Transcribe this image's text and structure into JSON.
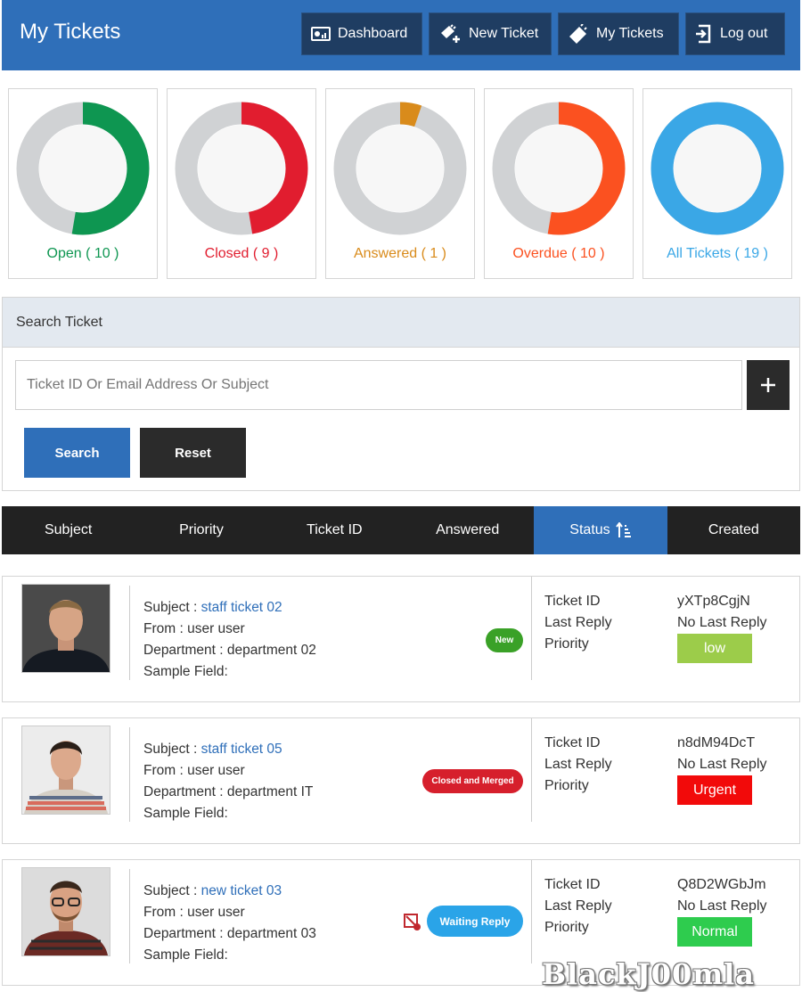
{
  "header": {
    "title": "My Tickets",
    "nav": [
      {
        "label": "Dashboard",
        "icon": "dashboard-icon"
      },
      {
        "label": "New Ticket",
        "icon": "new-ticket-icon"
      },
      {
        "label": "My Tickets",
        "icon": "ticket-icon"
      },
      {
        "label": "Log out",
        "icon": "logout-icon"
      }
    ]
  },
  "stats": [
    {
      "label": "Open ( 10 )",
      "value": 10,
      "total": 19,
      "color": "#0e9651"
    },
    {
      "label": "Closed ( 9 )",
      "value": 9,
      "total": 19,
      "color": "#e11d2f"
    },
    {
      "label": "Answered ( 1 )",
      "value": 1,
      "total": 19,
      "color": "#d98b1b"
    },
    {
      "label": "Overdue ( 10 )",
      "value": 10,
      "total": 19,
      "color": "#fb5120"
    },
    {
      "label": "All Tickets ( 19 )",
      "value": 19,
      "total": 19,
      "color": "#3aa7e6"
    }
  ],
  "search": {
    "heading": "Search Ticket",
    "placeholder": "Ticket ID Or Email Address Or Subject",
    "search_label": "Search",
    "reset_label": "Reset"
  },
  "sort": {
    "columns": [
      "Subject",
      "Priority",
      "Ticket ID",
      "Answered",
      "Status",
      "Created"
    ],
    "active": "Status"
  },
  "labels": {
    "subject": "Subject : ",
    "from": "From : ",
    "department": "Department : ",
    "sample_field": "Sample Field:",
    "ticket_id": "Ticket ID",
    "last_reply": "Last Reply",
    "priority": "Priority"
  },
  "tickets": [
    {
      "subject": "staff ticket 02",
      "from": "user user",
      "department": "department 02",
      "status": "New",
      "status_color": "#3aa127",
      "ticket_id": "yXTp8CgjN",
      "last_reply": "No Last Reply",
      "priority": "low",
      "priority_color": "#9ccc4a"
    },
    {
      "subject": "staff ticket 05",
      "from": "user user",
      "department": "department IT",
      "status": "Closed and Merged",
      "status_color": "#d61f2c",
      "ticket_id": "n8dM94DcT",
      "last_reply": "No Last Reply",
      "priority": "Urgent",
      "priority_color": "#f20a0a"
    },
    {
      "subject": "new ticket 03",
      "from": "user user",
      "department": "department 03",
      "status": "Waiting Reply",
      "status_color": "#2aa4e8",
      "ticket_id": "Q8D2WGbJm",
      "last_reply": "No Last Reply",
      "priority": "Normal",
      "priority_color": "#2ecc4e"
    }
  ],
  "watermark": "BlackJ00mla"
}
